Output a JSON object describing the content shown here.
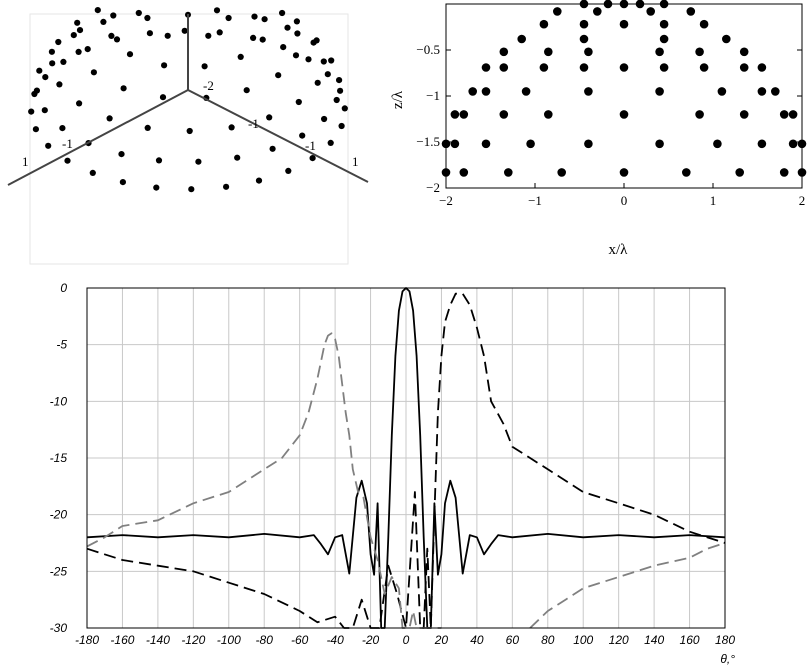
{
  "chart_data": [
    {
      "type": "scatter",
      "view": "3d",
      "axis_tick_labels": [
        "-2",
        "1",
        "1",
        "-1",
        "-1",
        "-1"
      ],
      "points_description": "hemispherical arrangement of points"
    },
    {
      "type": "scatter",
      "xlabel": "x/λ",
      "ylabel": "z/λ",
      "xlim": [
        -2,
        2
      ],
      "ylim": [
        -2,
        0
      ],
      "x_ticks": [
        "−2",
        "−1",
        "0",
        "1",
        "2"
      ],
      "y_ticks": [
        "−0.5",
        "−1",
        "−1.5",
        "−2"
      ],
      "rows": [
        {
          "z": 0.0,
          "x": [
            -0.45,
            -0.18,
            0.0,
            0.18,
            0.45
          ]
        },
        {
          "z": -0.08,
          "x": [
            -0.75,
            -0.3,
            0.3,
            0.75
          ]
        },
        {
          "z": -0.22,
          "x": [
            -0.9,
            -0.45,
            0.0,
            0.45,
            0.9
          ]
        },
        {
          "z": -0.38,
          "x": [
            -1.15,
            -0.45,
            0.45,
            1.15
          ]
        },
        {
          "z": -0.52,
          "x": [
            -1.35,
            -0.85,
            -0.4,
            0.4,
            0.85,
            1.35
          ]
        },
        {
          "z": -0.69,
          "x": [
            -1.55,
            -1.35,
            -0.9,
            -0.45,
            0.0,
            0.45,
            0.9,
            1.35,
            1.55
          ]
        },
        {
          "z": -0.95,
          "x": [
            -1.7,
            -1.55,
            -1.1,
            -0.4,
            0.4,
            1.1,
            1.55,
            1.7
          ]
        },
        {
          "z": -1.2,
          "x": [
            -1.9,
            -1.8,
            -1.35,
            -0.85,
            0.0,
            0.85,
            1.35,
            1.8,
            1.9
          ]
        },
        {
          "z": -1.52,
          "x": [
            -2.0,
            -1.9,
            -1.55,
            -1.05,
            -0.4,
            0.4,
            1.05,
            1.55,
            1.9,
            2.0
          ]
        },
        {
          "z": -1.83,
          "x": [
            -2.0,
            -1.8,
            -1.3,
            -0.7,
            0.0,
            0.7,
            1.3,
            1.8,
            2.0
          ]
        }
      ]
    },
    {
      "type": "line",
      "xlabel": "θ,°",
      "ylabel": "",
      "xlim": [
        -180,
        180
      ],
      "ylim": [
        -30,
        0
      ],
      "x_ticks": [
        -180,
        -160,
        -140,
        -120,
        -100,
        -80,
        -60,
        -40,
        -20,
        0,
        20,
        40,
        60,
        80,
        100,
        120,
        140,
        160,
        180
      ],
      "y_ticks": [
        0,
        -5,
        -10,
        -15,
        -20,
        -25,
        -30
      ],
      "grid": true,
      "series": [
        {
          "style": "solid",
          "color": "#000000",
          "x": [
            -180,
            -160,
            -140,
            -120,
            -100,
            -80,
            -60,
            -52,
            -48,
            -44,
            -40,
            -36,
            -32,
            -28,
            -25,
            -22,
            -20,
            -18,
            -16,
            -14,
            -12,
            -10,
            -8,
            -6,
            -4,
            -2,
            0,
            2,
            4,
            6,
            8,
            10,
            12,
            14,
            16,
            18,
            20,
            22,
            25,
            28,
            32,
            36,
            40,
            44,
            48,
            52,
            60,
            80,
            100,
            120,
            140,
            160,
            180
          ],
          "y": [
            -22,
            -21.8,
            -22,
            -21.8,
            -22,
            -21.7,
            -22,
            -21.8,
            -22.6,
            -23.5,
            -22,
            -21.8,
            -25.2,
            -18.5,
            -17,
            -19,
            -23.5,
            -25.3,
            -19,
            -30,
            -30,
            -22,
            -13,
            -6,
            -2,
            -0.3,
            0,
            -0.3,
            -2,
            -6,
            -13,
            -22,
            -30,
            -30,
            -19,
            -25.3,
            -23.5,
            -19,
            -17,
            -18.5,
            -25.2,
            -21.8,
            -22,
            -23.5,
            -22.6,
            -21.8,
            -22,
            -21.7,
            -22,
            -21.8,
            -22,
            -21.8,
            -22
          ]
        },
        {
          "style": "dashed",
          "color": "#000000",
          "x": [
            -180,
            -160,
            -140,
            -120,
            -100,
            -80,
            -60,
            -50,
            -40,
            -35,
            -30,
            -25,
            -20,
            -15,
            -10,
            -5,
            0,
            5,
            8,
            10,
            12,
            14,
            16,
            18,
            20,
            22,
            25,
            28,
            32,
            36,
            40,
            44,
            48,
            55,
            60,
            70,
            80,
            100,
            120,
            140,
            160,
            180
          ],
          "y": [
            -23,
            -24,
            -24.5,
            -25,
            -26,
            -27,
            -28.5,
            -29.5,
            -29,
            -30,
            -30,
            -27.5,
            -30,
            -30,
            -24.5,
            -27,
            -30,
            -18,
            -30,
            -30,
            -23,
            -30,
            -20,
            -11,
            -6,
            -3,
            -1.5,
            -0.5,
            -0.5,
            -1.5,
            -3.5,
            -6,
            -10,
            -12,
            -14,
            -15,
            -16,
            -18,
            -19,
            -20,
            -21.5,
            -22.5
          ]
        },
        {
          "style": "dashed",
          "color": "#808080",
          "x": [
            -180,
            -170,
            -160,
            -140,
            -120,
            -100,
            -80,
            -70,
            -60,
            -55,
            -50,
            -46,
            -44,
            -42,
            -40,
            -38,
            -36,
            -34,
            -32,
            -30,
            -27,
            -24,
            -20,
            -16,
            -12,
            -8,
            -4,
            -2,
            0,
            2,
            4,
            6,
            10,
            14,
            18,
            20
          ],
          "y": [
            -22.8,
            -22,
            -21,
            -20.5,
            -19,
            -18,
            -16,
            -15,
            -13,
            -11,
            -8,
            -5,
            -4.2,
            -4,
            -4.5,
            -6,
            -8.5,
            -11,
            -13,
            -16,
            -18,
            -18.5,
            -22,
            -24,
            -27,
            -25.5,
            -26.5,
            -30,
            -30,
            -30,
            -28.5,
            -30,
            -30,
            -30,
            -30,
            -30
          ]
        },
        {
          "style": "dashed",
          "color": "#808080",
          "x": [
            70,
            80,
            90,
            100,
            120,
            140,
            160,
            170,
            180
          ],
          "y": [
            -30,
            -28.5,
            -27.5,
            -26.5,
            -25.5,
            -24.5,
            -23.8,
            -23,
            -22.5
          ]
        }
      ]
    }
  ]
}
